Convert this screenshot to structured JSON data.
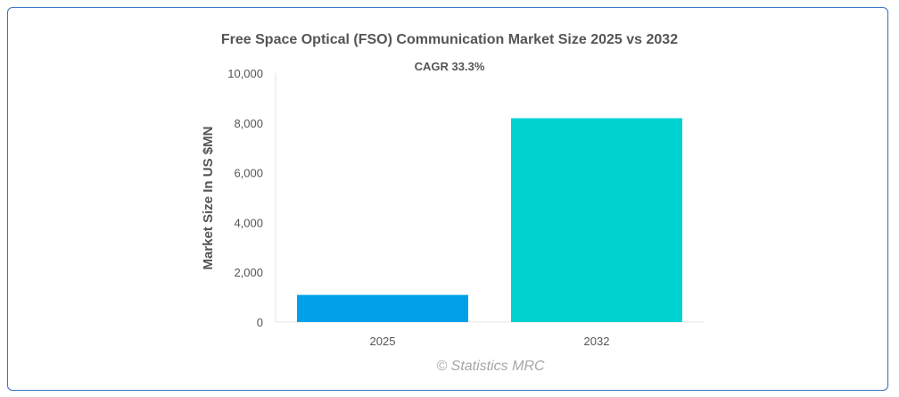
{
  "chart_data": {
    "type": "bar",
    "title": "Free Space Optical (FSO) Communication Market Size 2025 vs 2032",
    "annotation": "CAGR 33.3%",
    "xlabel": "",
    "ylabel": "Market Size In US $MN",
    "categories": [
      "2025",
      "2032"
    ],
    "values": [
      1090,
      8190
    ],
    "bar_colors": [
      "#00a1e9",
      "#00d2d2"
    ],
    "ylim": [
      0,
      10000
    ],
    "yticks": [
      0,
      2000,
      4000,
      6000,
      8000,
      10000
    ],
    "ytick_labels": [
      "0",
      "2,000",
      "4,000",
      "6,000",
      "8,000",
      "10,000"
    ],
    "grid": false,
    "legend": "none"
  },
  "credit": "© Statistics MRC",
  "colors": {
    "frame_border": "#3a78c4",
    "axis_line": "#e6e6e6",
    "text": "#555555"
  }
}
